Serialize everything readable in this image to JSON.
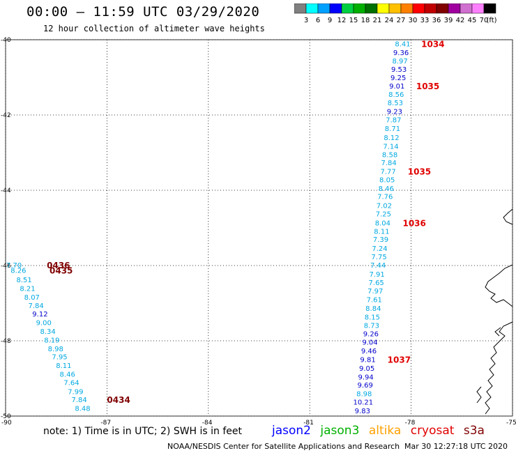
{
  "header": {
    "title": "00:00 – 11:59 UTC 03/29/2020",
    "subtitle": "12 hour collection of altimeter wave heights"
  },
  "legend": {
    "unit": "(ft)",
    "bins": [
      {
        "label": "3",
        "color": "#808080"
      },
      {
        "label": "6",
        "color": "#00ffff"
      },
      {
        "label": "9",
        "color": "#00a0ff"
      },
      {
        "label": "12",
        "color": "#0000ff"
      },
      {
        "label": "15",
        "color": "#00d040"
      },
      {
        "label": "18",
        "color": "#00b000"
      },
      {
        "label": "21",
        "color": "#007000"
      },
      {
        "label": "24",
        "color": "#ffff00"
      },
      {
        "label": "27",
        "color": "#ffc000"
      },
      {
        "label": "30",
        "color": "#ff8000"
      },
      {
        "label": "33",
        "color": "#ff0000"
      },
      {
        "label": "36",
        "color": "#c00000"
      },
      {
        "label": "39",
        "color": "#800000"
      },
      {
        "label": "42",
        "color": "#a000a0"
      },
      {
        "label": "45",
        "color": "#d070d0"
      },
      {
        "label": "70",
        "color": "#ff80ff"
      },
      {
        "label": "",
        "color": "#000000"
      }
    ]
  },
  "footer": {
    "note": "note: 1) Time is in UTC; 2) SWH is in feet",
    "satellites": [
      {
        "name": "jason2",
        "color": "#0000ff"
      },
      {
        "name": "jason3",
        "color": "#00b000"
      },
      {
        "name": "altika",
        "color": "#ffa000"
      },
      {
        "name": "cryosat",
        "color": "#e00000"
      },
      {
        "name": "s3a",
        "color": "#800000"
      }
    ],
    "credit": "NOAA/NESDIS Center for Satellite Applications and Research",
    "timestamp": "Mar 30 12:27:18 UTC 2020"
  },
  "chart_data": {
    "type": "scatter",
    "title": "00:00 – 11:59 UTC 03/29/2020",
    "xlim": [
      -90,
      -75
    ],
    "ylim": [
      -50,
      -40
    ],
    "x_ticks": [
      -90,
      -87,
      -84,
      -81,
      -78,
      -75
    ],
    "y_ticks": [
      -40,
      -42,
      -44,
      -46,
      -48,
      -50
    ],
    "grid": true,
    "colors": {
      "blue": "#0000cc",
      "cyan": "#00a8e0",
      "time_red": "#e00000",
      "time_dark": "#800000"
    },
    "tracks": [
      {
        "name": "east-track",
        "time_color": "#e00000",
        "points": [
          {
            "lon": -78.25,
            "lat": -40.1,
            "swh": "8.41",
            "c": "cyan"
          },
          {
            "lon": -78.3,
            "lat": -40.33,
            "swh": "9.36",
            "c": "blue"
          },
          {
            "lon": -78.33,
            "lat": -40.56,
            "swh": "8.97",
            "c": "cyan"
          },
          {
            "lon": -78.36,
            "lat": -40.78,
            "swh": "9.53",
            "c": "blue"
          },
          {
            "lon": -78.38,
            "lat": -41.0,
            "swh": "9.25",
            "c": "blue"
          },
          {
            "lon": -78.42,
            "lat": -41.22,
            "swh": "9.01",
            "c": "blue"
          },
          {
            "lon": -78.44,
            "lat": -41.44,
            "swh": "8.56",
            "c": "cyan"
          },
          {
            "lon": -78.47,
            "lat": -41.67,
            "swh": "8.53",
            "c": "cyan"
          },
          {
            "lon": -78.49,
            "lat": -41.9,
            "swh": "9.23",
            "c": "blue"
          },
          {
            "lon": -78.52,
            "lat": -42.12,
            "swh": "7.87",
            "c": "cyan"
          },
          {
            "lon": -78.55,
            "lat": -42.35,
            "swh": "8.71",
            "c": "cyan"
          },
          {
            "lon": -78.58,
            "lat": -42.59,
            "swh": "8.12",
            "c": "cyan"
          },
          {
            "lon": -78.6,
            "lat": -42.82,
            "swh": "7.14",
            "c": "cyan"
          },
          {
            "lon": -78.63,
            "lat": -43.05,
            "swh": "8.58",
            "c": "cyan"
          },
          {
            "lon": -78.66,
            "lat": -43.26,
            "swh": "7.84",
            "c": "cyan"
          },
          {
            "lon": -78.68,
            "lat": -43.49,
            "swh": "7.77",
            "c": "cyan"
          },
          {
            "lon": -78.71,
            "lat": -43.71,
            "swh": "8.05",
            "c": "cyan"
          },
          {
            "lon": -78.74,
            "lat": -43.94,
            "swh": "8.46",
            "c": "cyan"
          },
          {
            "lon": -78.77,
            "lat": -44.16,
            "swh": "7.76",
            "c": "cyan"
          },
          {
            "lon": -78.8,
            "lat": -44.4,
            "swh": "7.02",
            "c": "cyan"
          },
          {
            "lon": -78.82,
            "lat": -44.62,
            "swh": "7.25",
            "c": "cyan"
          },
          {
            "lon": -78.84,
            "lat": -44.86,
            "swh": "8.04",
            "c": "cyan"
          },
          {
            "lon": -78.87,
            "lat": -45.08,
            "swh": "8.11",
            "c": "cyan"
          },
          {
            "lon": -78.9,
            "lat": -45.3,
            "swh": "7.39",
            "c": "cyan"
          },
          {
            "lon": -78.93,
            "lat": -45.54,
            "swh": "7.24",
            "c": "cyan"
          },
          {
            "lon": -78.95,
            "lat": -45.76,
            "swh": "7.75",
            "c": "cyan"
          },
          {
            "lon": -78.98,
            "lat": -45.98,
            "swh": "7.44",
            "c": "cyan"
          },
          {
            "lon": -79.01,
            "lat": -46.22,
            "swh": "7.91",
            "c": "cyan"
          },
          {
            "lon": -79.03,
            "lat": -46.44,
            "swh": "7.65",
            "c": "cyan"
          },
          {
            "lon": -79.06,
            "lat": -46.67,
            "swh": "7.97",
            "c": "cyan"
          },
          {
            "lon": -79.09,
            "lat": -46.9,
            "swh": "7.61",
            "c": "cyan"
          },
          {
            "lon": -79.12,
            "lat": -47.13,
            "swh": "8.84",
            "c": "cyan"
          },
          {
            "lon": -79.15,
            "lat": -47.36,
            "swh": "8.15",
            "c": "cyan"
          },
          {
            "lon": -79.17,
            "lat": -47.58,
            "swh": "8.73",
            "c": "cyan"
          },
          {
            "lon": -79.19,
            "lat": -47.81,
            "swh": "9.26",
            "c": "blue"
          },
          {
            "lon": -79.22,
            "lat": -48.03,
            "swh": "9.04",
            "c": "blue"
          },
          {
            "lon": -79.25,
            "lat": -48.26,
            "swh": "9.46",
            "c": "blue"
          },
          {
            "lon": -79.28,
            "lat": -48.49,
            "swh": "9.81",
            "c": "blue"
          },
          {
            "lon": -79.31,
            "lat": -48.72,
            "swh": "9.05",
            "c": "blue"
          },
          {
            "lon": -79.34,
            "lat": -48.95,
            "swh": "9.94",
            "c": "blue"
          },
          {
            "lon": -79.36,
            "lat": -49.17,
            "swh": "9.69",
            "c": "blue"
          },
          {
            "lon": -79.39,
            "lat": -49.4,
            "swh": "8.98",
            "c": "cyan"
          },
          {
            "lon": -79.42,
            "lat": -49.62,
            "swh": "10.21",
            "c": "blue"
          },
          {
            "lon": -79.44,
            "lat": -49.85,
            "swh": "9.83",
            "c": "blue"
          }
        ],
        "times": [
          {
            "lon": -77.7,
            "lat": -40.1,
            "label": "1034"
          },
          {
            "lon": -77.85,
            "lat": -41.22,
            "label": "1035"
          },
          {
            "lon": -78.1,
            "lat": -43.49,
            "label": "1035"
          },
          {
            "lon": -78.25,
            "lat": -44.86,
            "label": "1036"
          },
          {
            "lon": -78.7,
            "lat": -48.49,
            "label": "1037"
          }
        ]
      },
      {
        "name": "west-track",
        "time_color": "#800000",
        "points": [
          {
            "lon": -89.75,
            "lat": -45.98,
            "swh": "7.70",
            "c": "cyan"
          },
          {
            "lon": -89.62,
            "lat": -46.12,
            "swh": "8.26",
            "c": "cyan"
          },
          {
            "lon": -89.45,
            "lat": -46.37,
            "swh": "8.51",
            "c": "cyan"
          },
          {
            "lon": -89.35,
            "lat": -46.6,
            "swh": "8.21",
            "c": "cyan"
          },
          {
            "lon": -89.22,
            "lat": -46.83,
            "swh": "8.07",
            "c": "cyan"
          },
          {
            "lon": -89.1,
            "lat": -47.06,
            "swh": "7.84",
            "c": "cyan"
          },
          {
            "lon": -88.98,
            "lat": -47.28,
            "swh": "9.12",
            "c": "blue"
          },
          {
            "lon": -88.87,
            "lat": -47.51,
            "swh": "9.00",
            "c": "cyan"
          },
          {
            "lon": -88.75,
            "lat": -47.74,
            "swh": "8.34",
            "c": "cyan"
          },
          {
            "lon": -88.63,
            "lat": -47.97,
            "swh": "8.19",
            "c": "cyan"
          },
          {
            "lon": -88.52,
            "lat": -48.2,
            "swh": "8.98",
            "c": "cyan"
          },
          {
            "lon": -88.4,
            "lat": -48.42,
            "swh": "7.95",
            "c": "cyan"
          },
          {
            "lon": -88.28,
            "lat": -48.65,
            "swh": "8.11",
            "c": "cyan"
          },
          {
            "lon": -88.17,
            "lat": -48.88,
            "swh": "8.46",
            "c": "cyan"
          },
          {
            "lon": -88.05,
            "lat": -49.1,
            "swh": "7.64",
            "c": "cyan"
          },
          {
            "lon": -87.93,
            "lat": -49.34,
            "swh": "7.99",
            "c": "cyan"
          },
          {
            "lon": -87.82,
            "lat": -49.56,
            "swh": "7.84",
            "c": "cyan"
          },
          {
            "lon": -87.72,
            "lat": -49.79,
            "swh": "8.48",
            "c": "cyan"
          }
        ],
        "times": [
          {
            "lon": -88.78,
            "lat": -45.98,
            "label": "0436"
          },
          {
            "lon": -88.7,
            "lat": -46.12,
            "label": "0435"
          },
          {
            "lon": -87.0,
            "lat": -49.56,
            "label": "0434"
          }
        ]
      }
    ]
  }
}
